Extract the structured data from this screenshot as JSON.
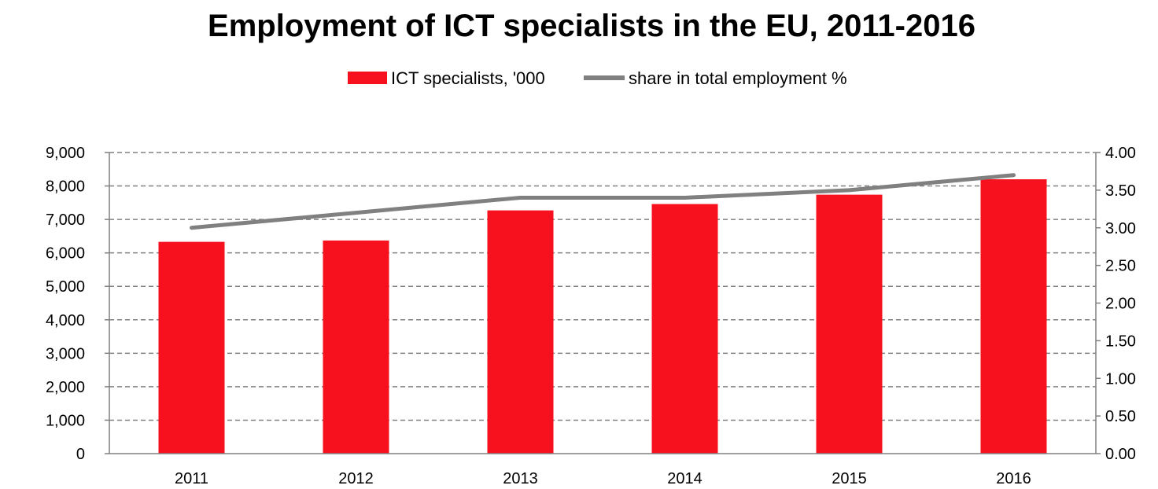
{
  "chart_data": {
    "type": "bar",
    "title": "Employment of ICT specialists in the EU, 2011-2016",
    "categories": [
      "2011",
      "2012",
      "2013",
      "2014",
      "2015",
      "2016"
    ],
    "series": [
      {
        "name": "ICT specialists, '000",
        "type": "bar",
        "axis": "left",
        "values": [
          6330,
          6370,
          7270,
          7460,
          7740,
          8200
        ]
      },
      {
        "name": "share in total employment %",
        "type": "line",
        "axis": "right",
        "values": [
          3.0,
          3.2,
          3.4,
          3.4,
          3.5,
          3.7
        ]
      }
    ],
    "left_axis": {
      "min": 0,
      "max": 9000,
      "ticks": [
        {
          "value": 0,
          "label": "0"
        },
        {
          "value": 1000,
          "label": "1,000"
        },
        {
          "value": 2000,
          "label": "2,000"
        },
        {
          "value": 3000,
          "label": "3,000"
        },
        {
          "value": 4000,
          "label": "4,000"
        },
        {
          "value": 5000,
          "label": "5,000"
        },
        {
          "value": 6000,
          "label": "6,000"
        },
        {
          "value": 7000,
          "label": "7,000"
        },
        {
          "value": 8000,
          "label": "8,000"
        },
        {
          "value": 9000,
          "label": "9,000"
        }
      ]
    },
    "right_axis": {
      "min": 0,
      "max": 4,
      "ticks": [
        {
          "value": 0,
          "label": "0.00"
        },
        {
          "value": 0.5,
          "label": "0.50"
        },
        {
          "value": 1.0,
          "label": "1.00"
        },
        {
          "value": 1.5,
          "label": "1.50"
        },
        {
          "value": 2.0,
          "label": "2.00"
        },
        {
          "value": 2.5,
          "label": "2.50"
        },
        {
          "value": 3.0,
          "label": "3.00"
        },
        {
          "value": 3.5,
          "label": "3.50"
        },
        {
          "value": 4.0,
          "label": "4.00"
        }
      ]
    },
    "grid": "dashed-horizontal",
    "legend_position": "top-center",
    "colors": {
      "bar": "#f7101e",
      "line": "#808080",
      "grid": "#808080",
      "axis": "#808080"
    }
  }
}
